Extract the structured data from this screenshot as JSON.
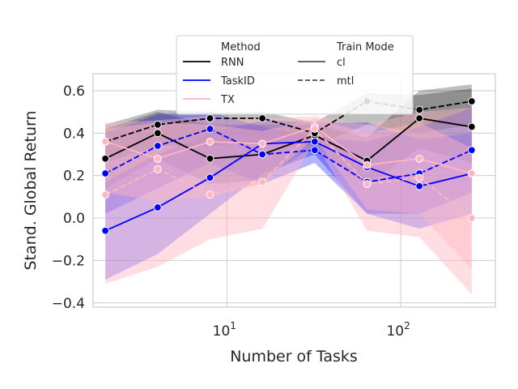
{
  "chart_data": {
    "type": "line",
    "xlabel": "Number of Tasks",
    "ylabel": "Stand. Global Return",
    "x_scale": "log",
    "xlim": [
      1.7,
      350
    ],
    "ylim": [
      -0.42,
      0.68
    ],
    "x_ticks": [
      {
        "value": 10,
        "base": "10",
        "exp": "1"
      },
      {
        "value": 100,
        "base": "10",
        "exp": "2"
      }
    ],
    "y_ticks": [
      -0.4,
      -0.2,
      0.0,
      0.2,
      0.4,
      0.6
    ],
    "y_tick_labels": [
      "−0.4",
      "−0.2",
      "0.0",
      "0.2",
      "0.4",
      "0.6"
    ],
    "grid": true,
    "legend": {
      "placement": "top-center",
      "method_title": "Method",
      "mode_title": "Train Mode",
      "methods": [
        {
          "label": "RNN",
          "color": "#000000"
        },
        {
          "label": "TaskID",
          "color": "#0000ff"
        },
        {
          "label": "TX",
          "color": "#ffb6c1"
        }
      ],
      "modes": [
        {
          "label": "cl",
          "style": "solid"
        },
        {
          "label": "mtl",
          "style": "dashed"
        }
      ]
    },
    "x": [
      2,
      4,
      8,
      16,
      32,
      64,
      128,
      256
    ],
    "series": [
      {
        "method": "RNN",
        "mode": "cl",
        "color": "#000000",
        "dash": false,
        "values": [
          0.28,
          0.4,
          0.28,
          0.3,
          0.39,
          0.27,
          0.47,
          0.43
        ],
        "lower": [
          0.14,
          0.28,
          0.16,
          0.18,
          0.34,
          0.15,
          0.33,
          0.26
        ],
        "upper": [
          0.42,
          0.5,
          0.44,
          0.44,
          0.44,
          0.38,
          0.6,
          0.63
        ]
      },
      {
        "method": "RNN",
        "mode": "mtl",
        "color": "#000000",
        "dash": true,
        "values": [
          0.36,
          0.44,
          0.47,
          0.47,
          0.4,
          0.55,
          0.51,
          0.55
        ],
        "lower": [
          0.26,
          0.34,
          0.34,
          0.36,
          0.34,
          0.44,
          0.4,
          0.44
        ],
        "upper": [
          0.44,
          0.51,
          0.5,
          0.5,
          0.45,
          0.59,
          0.58,
          0.61
        ]
      },
      {
        "method": "TaskID",
        "mode": "cl",
        "color": "#0000ff",
        "dash": false,
        "values": [
          -0.06,
          0.05,
          0.19,
          0.35,
          0.36,
          0.24,
          0.15,
          0.21
        ],
        "lower": [
          -0.29,
          -0.17,
          0.02,
          0.21,
          0.3,
          0.02,
          -0.05,
          0.02
        ],
        "upper": [
          0.17,
          0.3,
          0.4,
          0.46,
          0.45,
          0.45,
          0.37,
          0.4
        ]
      },
      {
        "method": "TaskID",
        "mode": "mtl",
        "color": "#0000ff",
        "dash": true,
        "values": [
          0.21,
          0.34,
          0.42,
          0.3,
          0.32,
          0.17,
          0.21,
          0.32
        ],
        "lower": [
          0.02,
          0.14,
          0.26,
          0.16,
          0.26,
          0.02,
          0.02,
          0.12
        ],
        "upper": [
          0.4,
          0.49,
          0.5,
          0.43,
          0.38,
          0.36,
          0.43,
          0.52
        ]
      },
      {
        "method": "TX",
        "mode": "cl",
        "color": "#ffb6c1",
        "dash": false,
        "values": [
          0.36,
          0.28,
          0.36,
          0.35,
          0.43,
          0.25,
          0.28,
          0.21
        ],
        "lower": [
          0.12,
          0.08,
          0.1,
          0.16,
          0.38,
          0.04,
          0.02,
          -0.24
        ],
        "upper": [
          0.45,
          0.46,
          0.48,
          0.47,
          0.48,
          0.44,
          0.5,
          0.52
        ]
      },
      {
        "method": "TX",
        "mode": "mtl",
        "color": "#ffb6c1",
        "dash": true,
        "values": [
          0.11,
          0.23,
          0.11,
          0.17,
          0.42,
          0.16,
          0.19,
          0.0
        ],
        "lower": [
          -0.31,
          -0.23,
          -0.1,
          -0.05,
          0.36,
          -0.06,
          -0.09,
          -0.36
        ],
        "upper": [
          0.42,
          0.45,
          0.44,
          0.41,
          0.47,
          0.4,
          0.45,
          0.33
        ]
      }
    ]
  }
}
